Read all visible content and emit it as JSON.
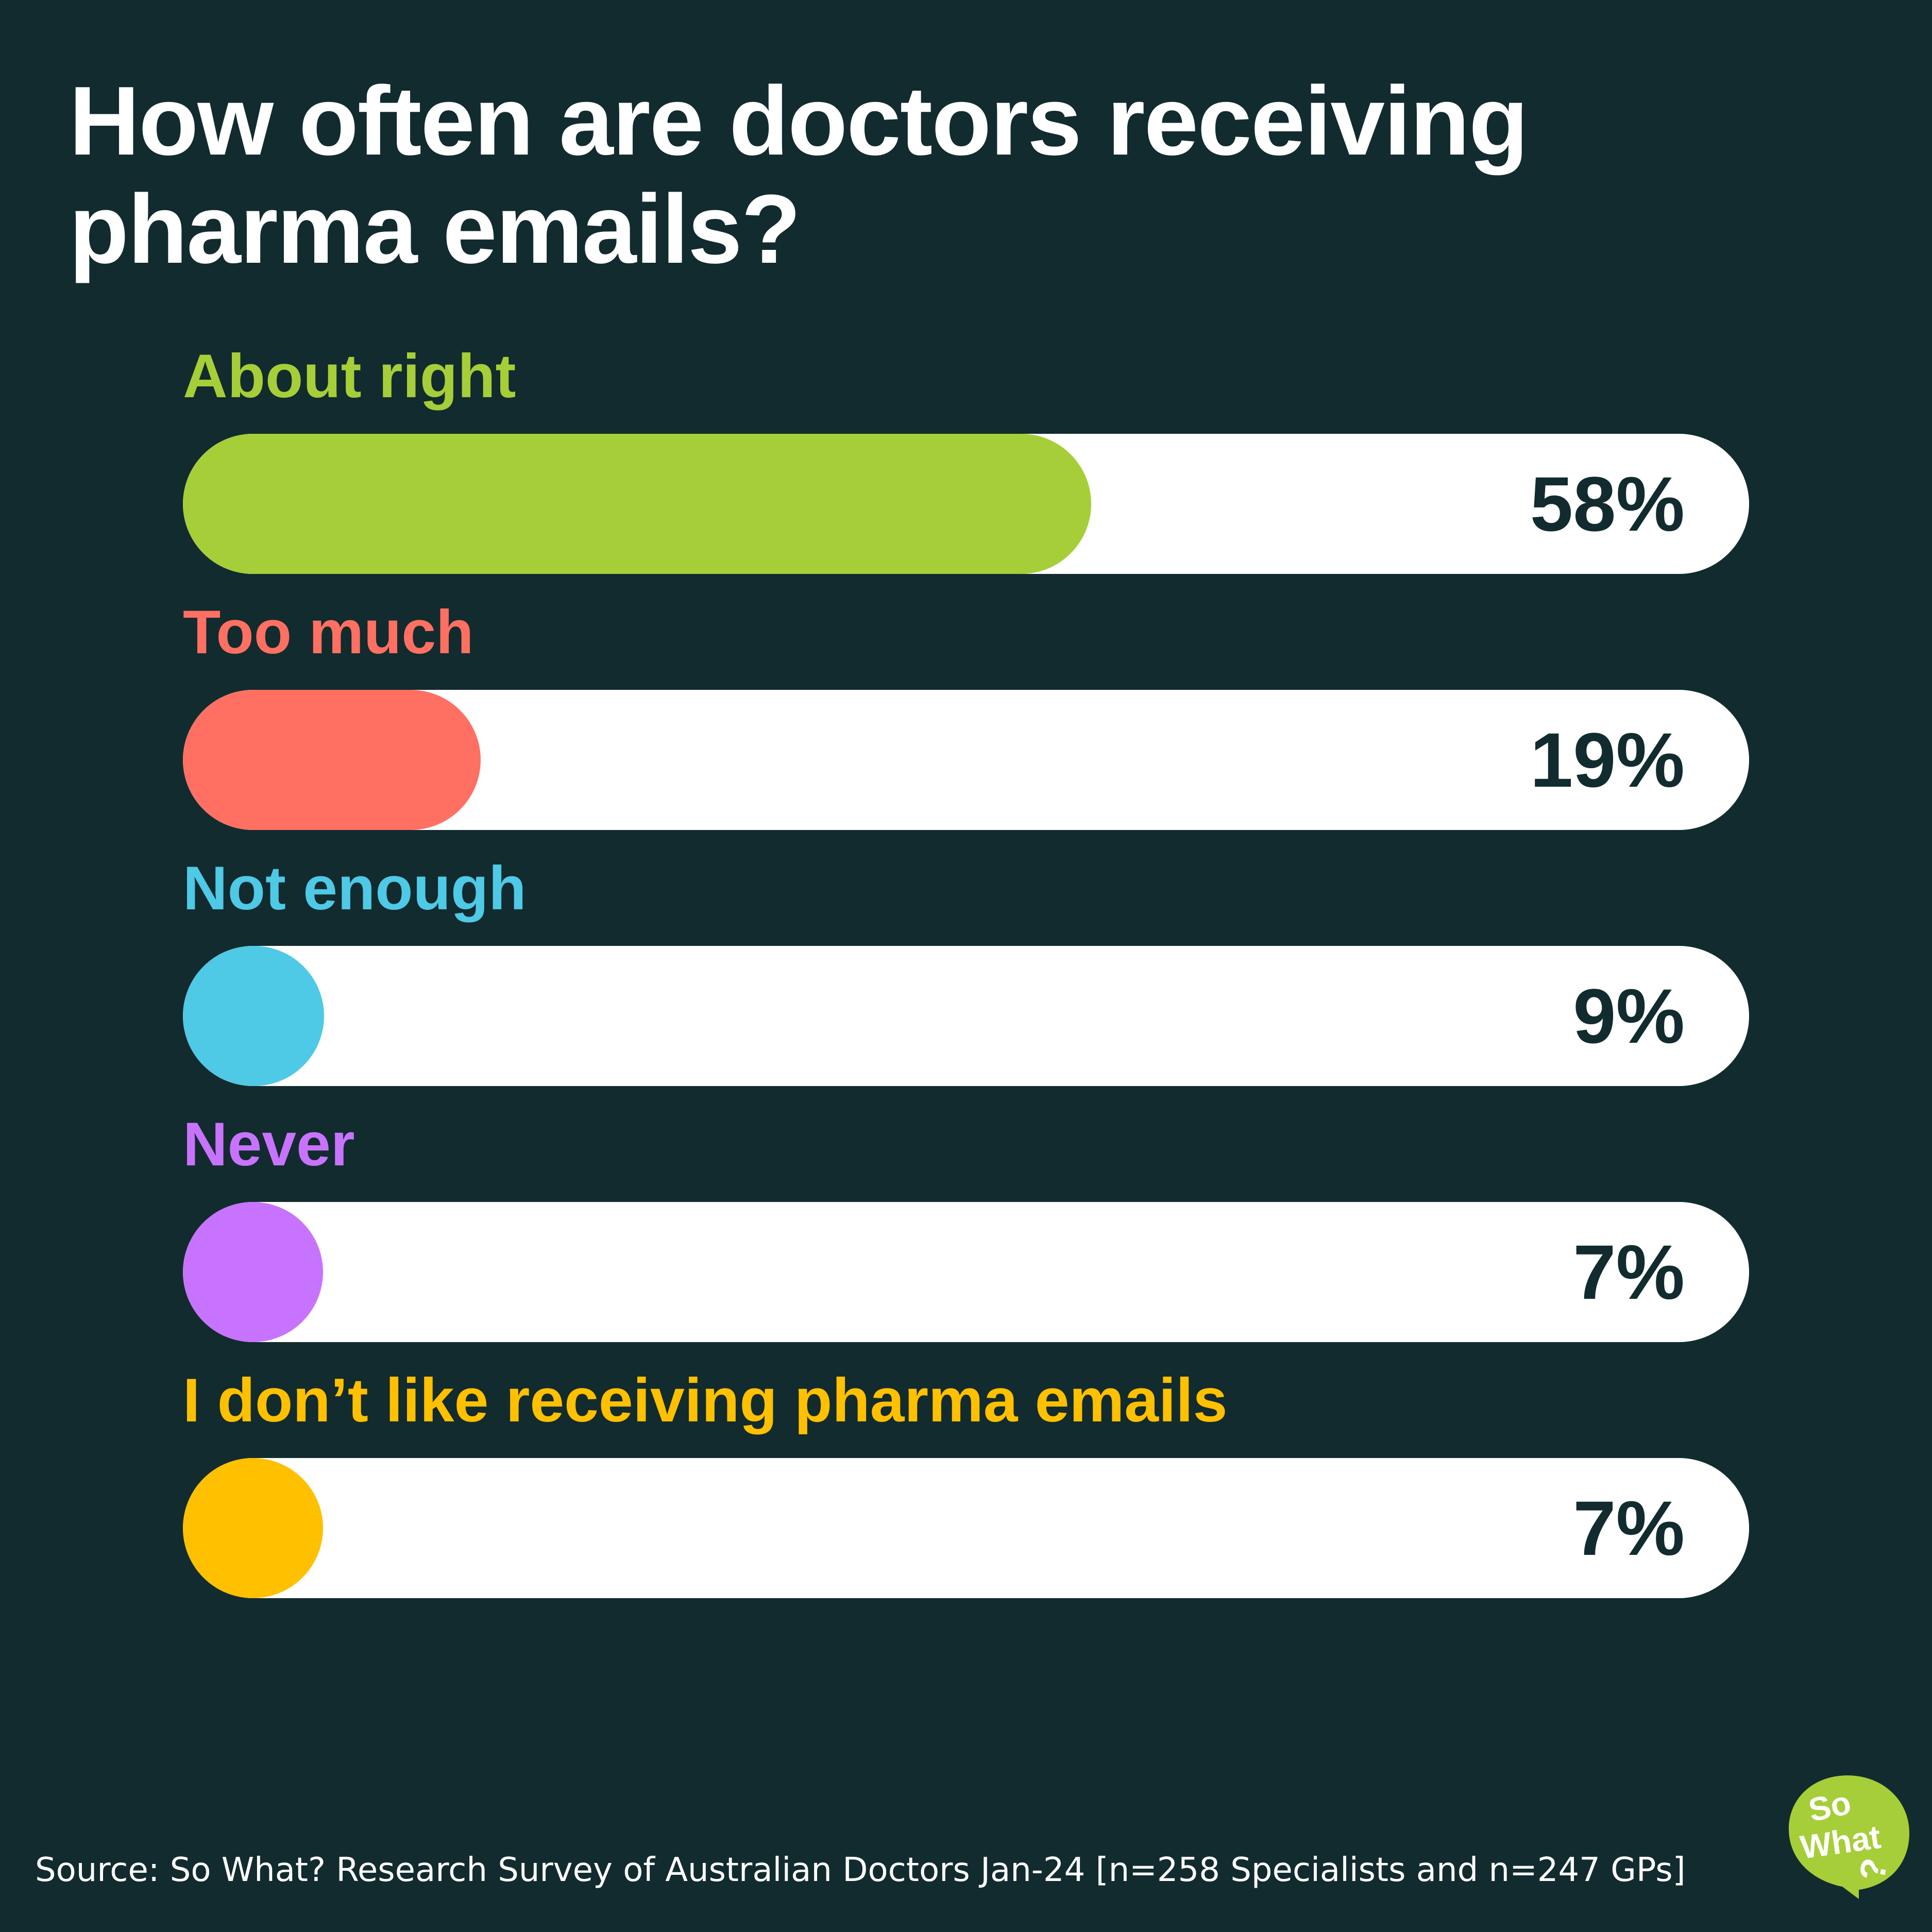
{
  "title": "How often are doctors receiving pharma emails?",
  "chart_data": {
    "type": "bar",
    "orientation": "horizontal",
    "title": "How often are doctors receiving pharma emails?",
    "categories": [
      "About right",
      "Too much",
      "Not enough",
      "Never",
      "I don’t like receiving pharma emails"
    ],
    "values": [
      58,
      19,
      9,
      7,
      7
    ],
    "value_labels": [
      "58%",
      "19%",
      "9%",
      "7%",
      "7%"
    ],
    "colors": [
      "#a6ce39",
      "#ff7062",
      "#4ec9e6",
      "#c873ff",
      "#ffc000"
    ],
    "xlim": [
      0,
      100
    ],
    "grid": false,
    "legend": "none"
  },
  "source": "Source: So What? Research Survey of Australian Doctors Jan-24 [n=258 Specialists and n=247 GPs]",
  "logo": {
    "text_line1": "So",
    "text_line2": "What",
    "color": "#a6ce39"
  },
  "colors": {
    "background": "#122b2e",
    "track": "#ffffff",
    "value_text": "#122b2e",
    "title_text": "#ffffff"
  }
}
